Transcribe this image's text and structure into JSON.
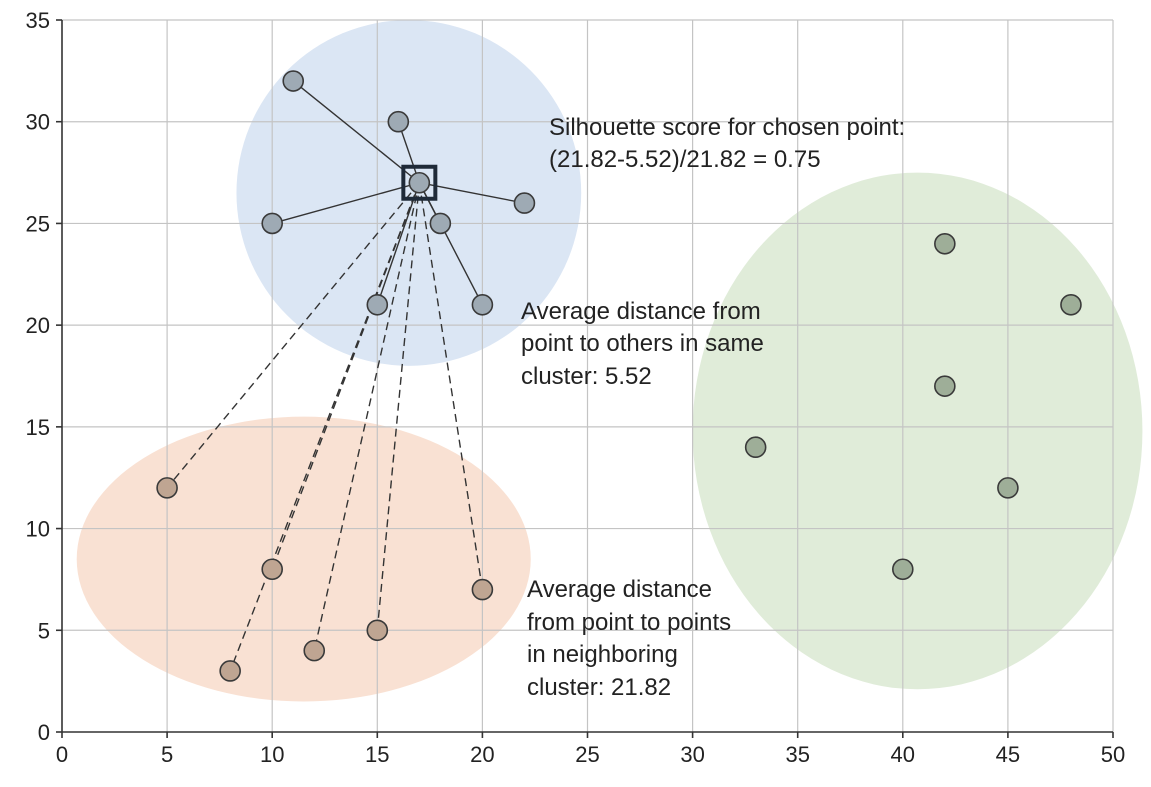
{
  "chart_data": {
    "type": "scatter",
    "title": "",
    "xlabel": "",
    "ylabel": "",
    "xlim": [
      0,
      50
    ],
    "ylim": [
      0,
      35
    ],
    "grid": true,
    "x_ticks": [
      "0",
      "5",
      "10",
      "15",
      "20",
      "25",
      "30",
      "35",
      "40",
      "45",
      "50"
    ],
    "y_ticks": [
      "0",
      "5",
      "10",
      "15",
      "20",
      "25",
      "30",
      "35"
    ],
    "clusters": [
      {
        "color": "#dbe6f4",
        "center": [
          16.5,
          26.5
        ],
        "radius_x": 8.2,
        "radius_y": 8.5
      },
      {
        "color": "#f9e1d3",
        "center": [
          11.5,
          8.5
        ],
        "radius_x": 10.8,
        "radius_y": 7
      },
      {
        "color": "#e0ecd9",
        "center": [
          40.7,
          14.8
        ],
        "radius_x": 10.7,
        "radius_y": 12.7
      }
    ],
    "series": [
      {
        "marker_color": "#9eaab4",
        "x": [
          11,
          16,
          22,
          10,
          18,
          15,
          20,
          17
        ],
        "y": [
          32,
          30,
          26,
          25,
          25,
          21,
          21,
          27
        ]
      },
      {
        "marker_color": "#bfa592",
        "x": [
          5,
          10,
          8,
          12,
          15,
          20
        ],
        "y": [
          12,
          8,
          3,
          4,
          5,
          7
        ]
      },
      {
        "marker_color": "#9eae98",
        "x": [
          42,
          48,
          42,
          33,
          45,
          40
        ],
        "y": [
          24,
          21,
          17,
          14,
          12,
          8
        ]
      }
    ],
    "chosen_point": [
      17,
      27
    ],
    "annotations": {
      "silhouette_line1": "Silhouette score for chosen point:",
      "silhouette_line2": "(21.82-5.52)/21.82 = 0.75",
      "same_line1": "Average distance from",
      "same_line2": "point to others in same",
      "same_line3": "cluster: 5.52",
      "neighbor_line1": "Average distance",
      "neighbor_line2": "from point to points",
      "neighbor_line3": "in neighboring",
      "neighbor_line4": "cluster: 21.82"
    }
  }
}
